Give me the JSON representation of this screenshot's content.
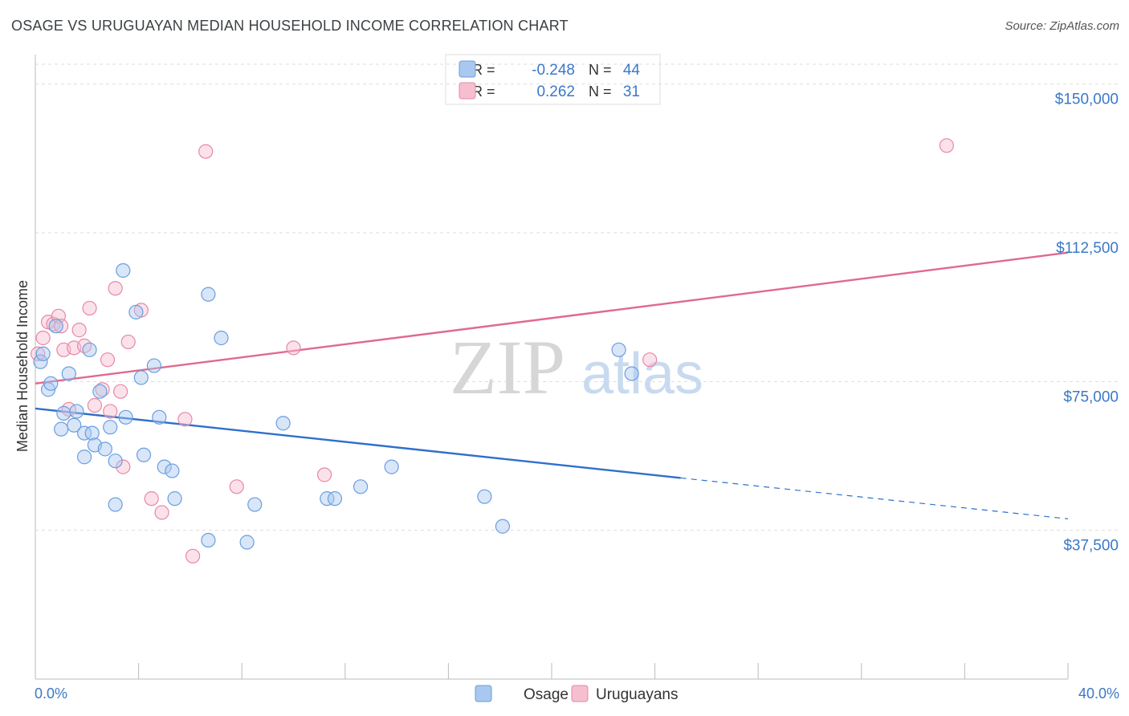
{
  "title": "OSAGE VS URUGUAYAN MEDIAN HOUSEHOLD INCOME CORRELATION CHART",
  "source": "Source: ZipAtlas.com",
  "watermark": {
    "zip": "ZIP",
    "atlas": "atlas"
  },
  "legend_top": [
    {
      "r_label": "R =",
      "r_value": "-0.248",
      "n_label": "N =",
      "n_value": "44",
      "color": "#a8c8f0",
      "border": "#6a9ee0"
    },
    {
      "r_label": "R =",
      "r_value": " 0.262",
      "n_label": "N =",
      "n_value": "31",
      "color": "#f6bfd0",
      "border": "#e887a6"
    }
  ],
  "legend_bottom": [
    {
      "label": "Osage",
      "color": "#a8c8f0",
      "border": "#6a9ee0"
    },
    {
      "label": "Uruguayans",
      "color": "#f6bfd0",
      "border": "#e887a6"
    }
  ],
  "colors": {
    "accent_text": "#3a78c9",
    "osage_line": "#2f6fcc",
    "uru_line": "#e0698f",
    "grid": "#dddddd"
  },
  "chart_data": {
    "type": "scatter",
    "title": "OSAGE VS URUGUAYAN MEDIAN HOUSEHOLD INCOME CORRELATION CHART",
    "xlabel": "",
    "ylabel": "Median Household Income",
    "xlim": [
      0,
      40
    ],
    "ylim": [
      0,
      155000
    ],
    "x_tick_labels": {
      "min": "0.0%",
      "max": "40.0%"
    },
    "y_ticks": [
      37500,
      75000,
      112500,
      150000
    ],
    "y_tick_labels": [
      "$37,500",
      "$75,000",
      "$112,500",
      "$150,000"
    ],
    "series": [
      {
        "name": "Osage",
        "points": [
          [
            0.2,
            80000
          ],
          [
            0.5,
            73000
          ],
          [
            0.6,
            74500
          ],
          [
            0.8,
            89000
          ],
          [
            1.0,
            63000
          ],
          [
            1.1,
            67000
          ],
          [
            1.3,
            77000
          ],
          [
            1.5,
            64000
          ],
          [
            1.6,
            67500
          ],
          [
            1.9,
            62000
          ],
          [
            1.9,
            56000
          ],
          [
            2.1,
            83000
          ],
          [
            2.2,
            62000
          ],
          [
            2.3,
            59000
          ],
          [
            2.5,
            72500
          ],
          [
            2.7,
            58000
          ],
          [
            2.9,
            63500
          ],
          [
            3.1,
            55000
          ],
          [
            3.1,
            44000
          ],
          [
            3.4,
            103000
          ],
          [
            3.5,
            66000
          ],
          [
            3.9,
            92500
          ],
          [
            4.1,
            76000
          ],
          [
            4.2,
            56500
          ],
          [
            4.6,
            79000
          ],
          [
            4.8,
            66000
          ],
          [
            5.0,
            53500
          ],
          [
            5.3,
            52500
          ],
          [
            5.4,
            45500
          ],
          [
            6.7,
            35000
          ],
          [
            6.7,
            97000
          ],
          [
            7.2,
            86000
          ],
          [
            8.2,
            34500
          ],
          [
            8.5,
            44000
          ],
          [
            9.6,
            64500
          ],
          [
            11.3,
            45500
          ],
          [
            11.6,
            45500
          ],
          [
            12.6,
            48500
          ],
          [
            13.8,
            53500
          ],
          [
            17.4,
            46000
          ],
          [
            18.1,
            38500
          ],
          [
            22.6,
            83000
          ],
          [
            23.1,
            77000
          ],
          [
            0.3,
            82000
          ]
        ],
        "trend": {
          "x": [
            0,
            25,
            40
          ],
          "y": [
            68200,
            50700,
            40400
          ],
          "dashed_from": 25
        }
      },
      {
        "name": "Uruguayans",
        "points": [
          [
            0.1,
            82000
          ],
          [
            0.3,
            86000
          ],
          [
            0.5,
            90000
          ],
          [
            0.7,
            89500
          ],
          [
            0.9,
            91500
          ],
          [
            1.1,
            83000
          ],
          [
            1.3,
            68000
          ],
          [
            1.5,
            83500
          ],
          [
            1.7,
            88000
          ],
          [
            1.9,
            84000
          ],
          [
            2.1,
            93500
          ],
          [
            2.3,
            69000
          ],
          [
            2.6,
            73000
          ],
          [
            2.8,
            80500
          ],
          [
            2.9,
            67500
          ],
          [
            3.1,
            98500
          ],
          [
            3.3,
            72500
          ],
          [
            3.4,
            53500
          ],
          [
            3.6,
            85000
          ],
          [
            4.1,
            93000
          ],
          [
            4.5,
            45500
          ],
          [
            4.9,
            42000
          ],
          [
            5.8,
            65500
          ],
          [
            6.1,
            31000
          ],
          [
            6.6,
            133000
          ],
          [
            7.8,
            48500
          ],
          [
            10.0,
            83500
          ],
          [
            11.2,
            51500
          ],
          [
            23.8,
            80500
          ],
          [
            35.3,
            134500
          ],
          [
            1.0,
            89000
          ]
        ],
        "trend": {
          "x": [
            0,
            40
          ],
          "y": [
            74500,
            107500
          ]
        }
      }
    ]
  }
}
